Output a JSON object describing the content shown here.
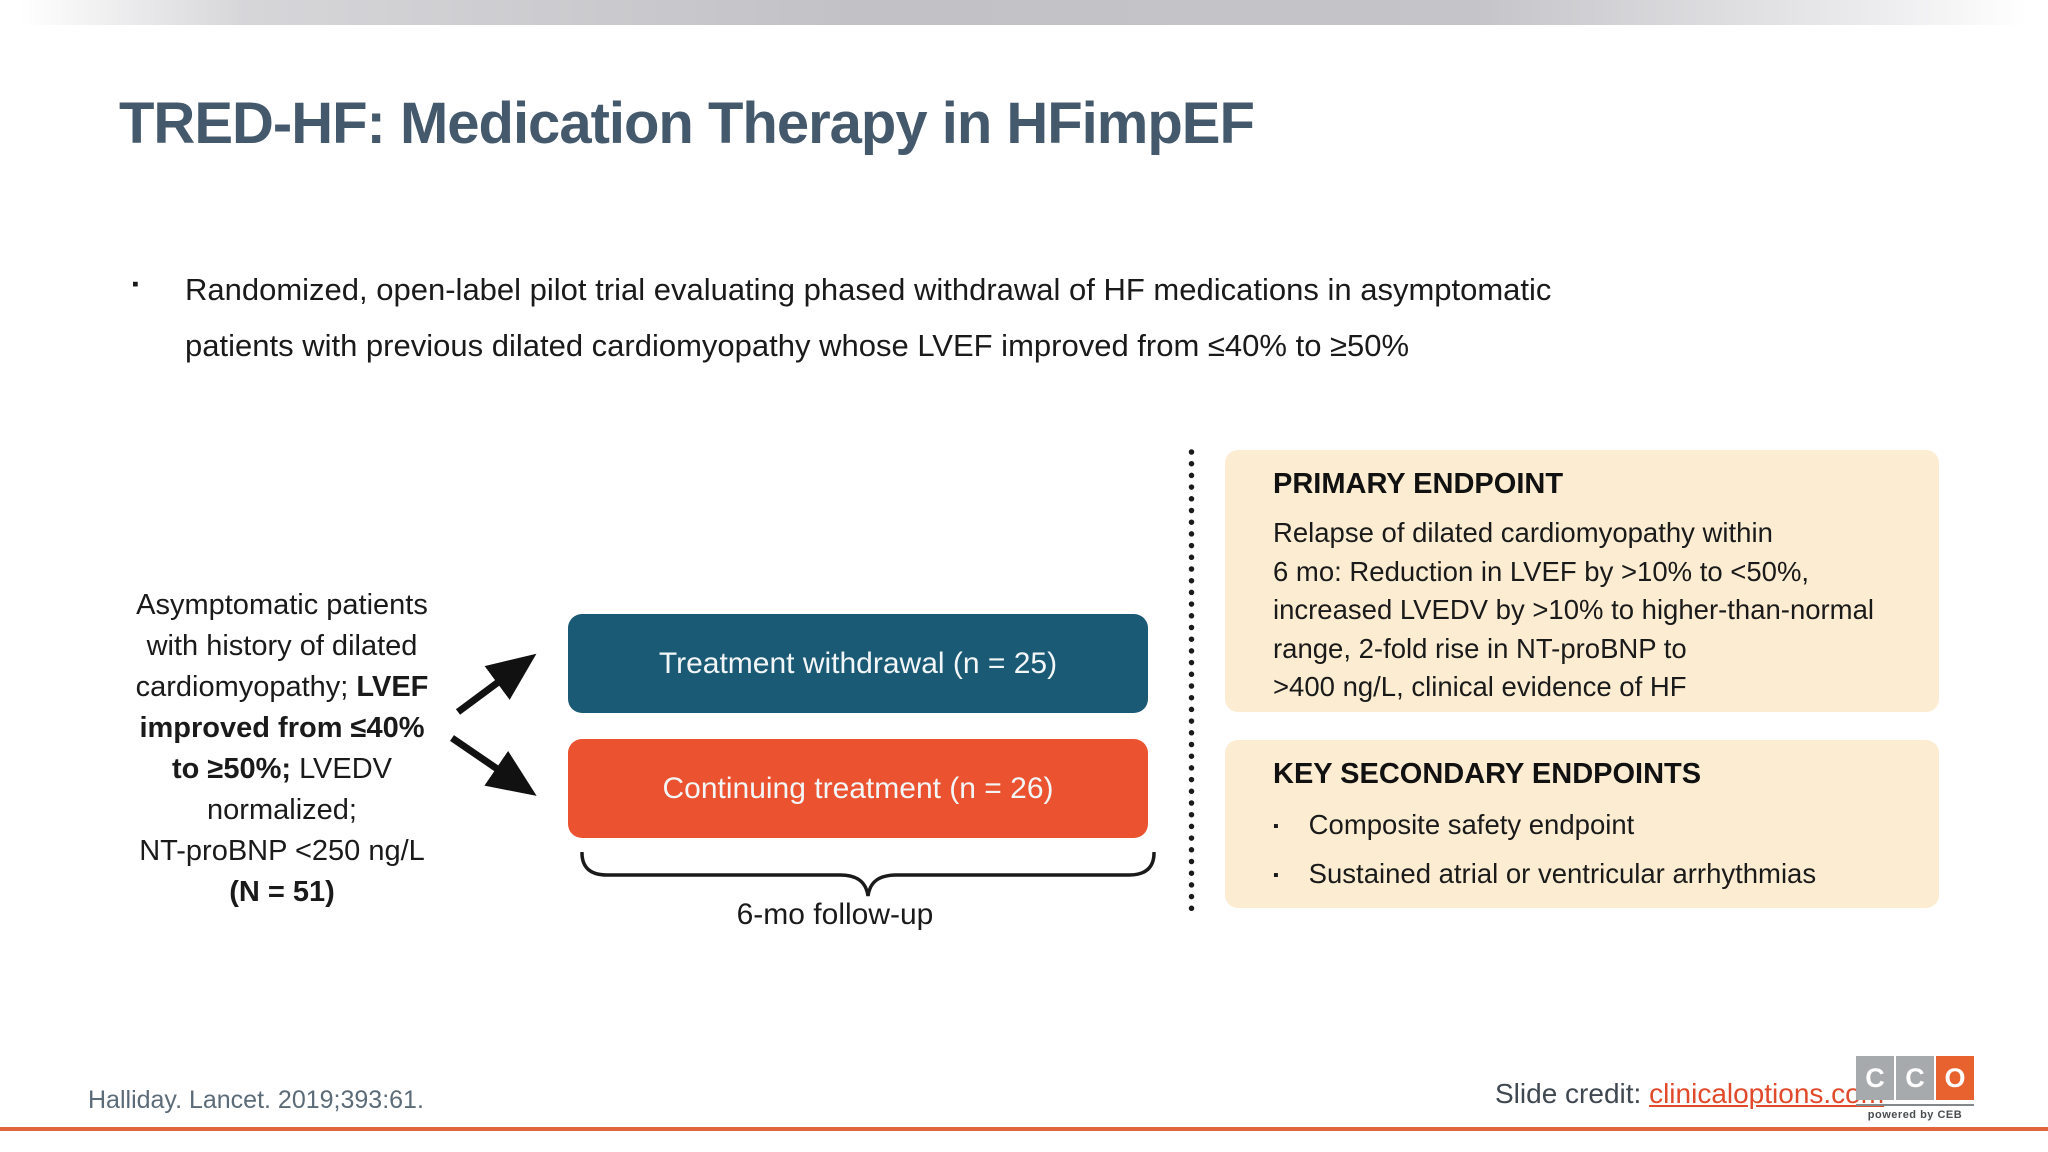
{
  "slide": {
    "title": "TRED-HF: Medication Therapy in HFimpEF",
    "intro_bullet": "Randomized, open-label pilot trial evaluating phased withdrawal of HF medications in asymptomatic\npatients with previous dilated cardiomyopathy whose LVEF improved from ≤40% to ≥50%"
  },
  "flow": {
    "population_lines": [
      [
        {
          "t": "Asymptomatic patients",
          "b": false
        }
      ],
      [
        {
          "t": "with history of dilated",
          "b": false
        }
      ],
      [
        {
          "t": "cardiomyopathy; ",
          "b": false
        },
        {
          "t": "LVEF",
          "b": true
        }
      ],
      [
        {
          "t": "improved from ≤40%",
          "b": true
        }
      ],
      [
        {
          "t": "to ≥50%;",
          "b": true
        },
        {
          "t": " LVEDV",
          "b": false
        }
      ],
      [
        {
          "t": "normalized;",
          "b": false
        }
      ],
      [
        {
          "t": "NT-proBNP <250 ng/L",
          "b": false
        }
      ],
      [
        {
          "t": "(N = 51)",
          "b": true
        }
      ]
    ],
    "arms": [
      {
        "label": "Treatment withdrawal (n = 25)",
        "color": "#1b5a75"
      },
      {
        "label": "Continuing treatment (n = 26)",
        "color": "#ea5230"
      }
    ],
    "followup_label": "6-mo follow-up"
  },
  "endpoints": {
    "primary": {
      "heading": "PRIMARY ENDPOINT",
      "body": "Relapse of dilated cardiomyopathy within\n6 mo: Reduction in LVEF by >10% to <50%,\nincreased LVEDV by >10% to higher-than-normal\nrange, 2-fold rise in NT-proBNP to\n>400 ng/L, clinical evidence of HF"
    },
    "secondary": {
      "heading": "KEY SECONDARY ENDPOINTS",
      "items": [
        "Composite safety endpoint",
        "Sustained atrial or ventricular arrhythmias"
      ]
    }
  },
  "footer": {
    "citation": "Halliday. Lancet. 2019;393:61.",
    "credit_label": "Slide credit: ",
    "credit_link": "clinicaloptions.com",
    "logo": {
      "letters": [
        "C",
        "C",
        "O"
      ],
      "tagline": "powered by CEB"
    }
  },
  "icons": {
    "bullet_square": "▪"
  },
  "colors": {
    "teal": "#1b5a75",
    "orange": "#ea5230",
    "cream": "#fcedd2",
    "title": "#44596b",
    "ink": "#1a1a1a",
    "citation": "#5b6b77",
    "link": "#e0492a",
    "accent_line": "#e0653c",
    "logo_gray": "#a7aaad",
    "logo_orange": "#e8622f",
    "band_gray": "#c2c2c6"
  }
}
